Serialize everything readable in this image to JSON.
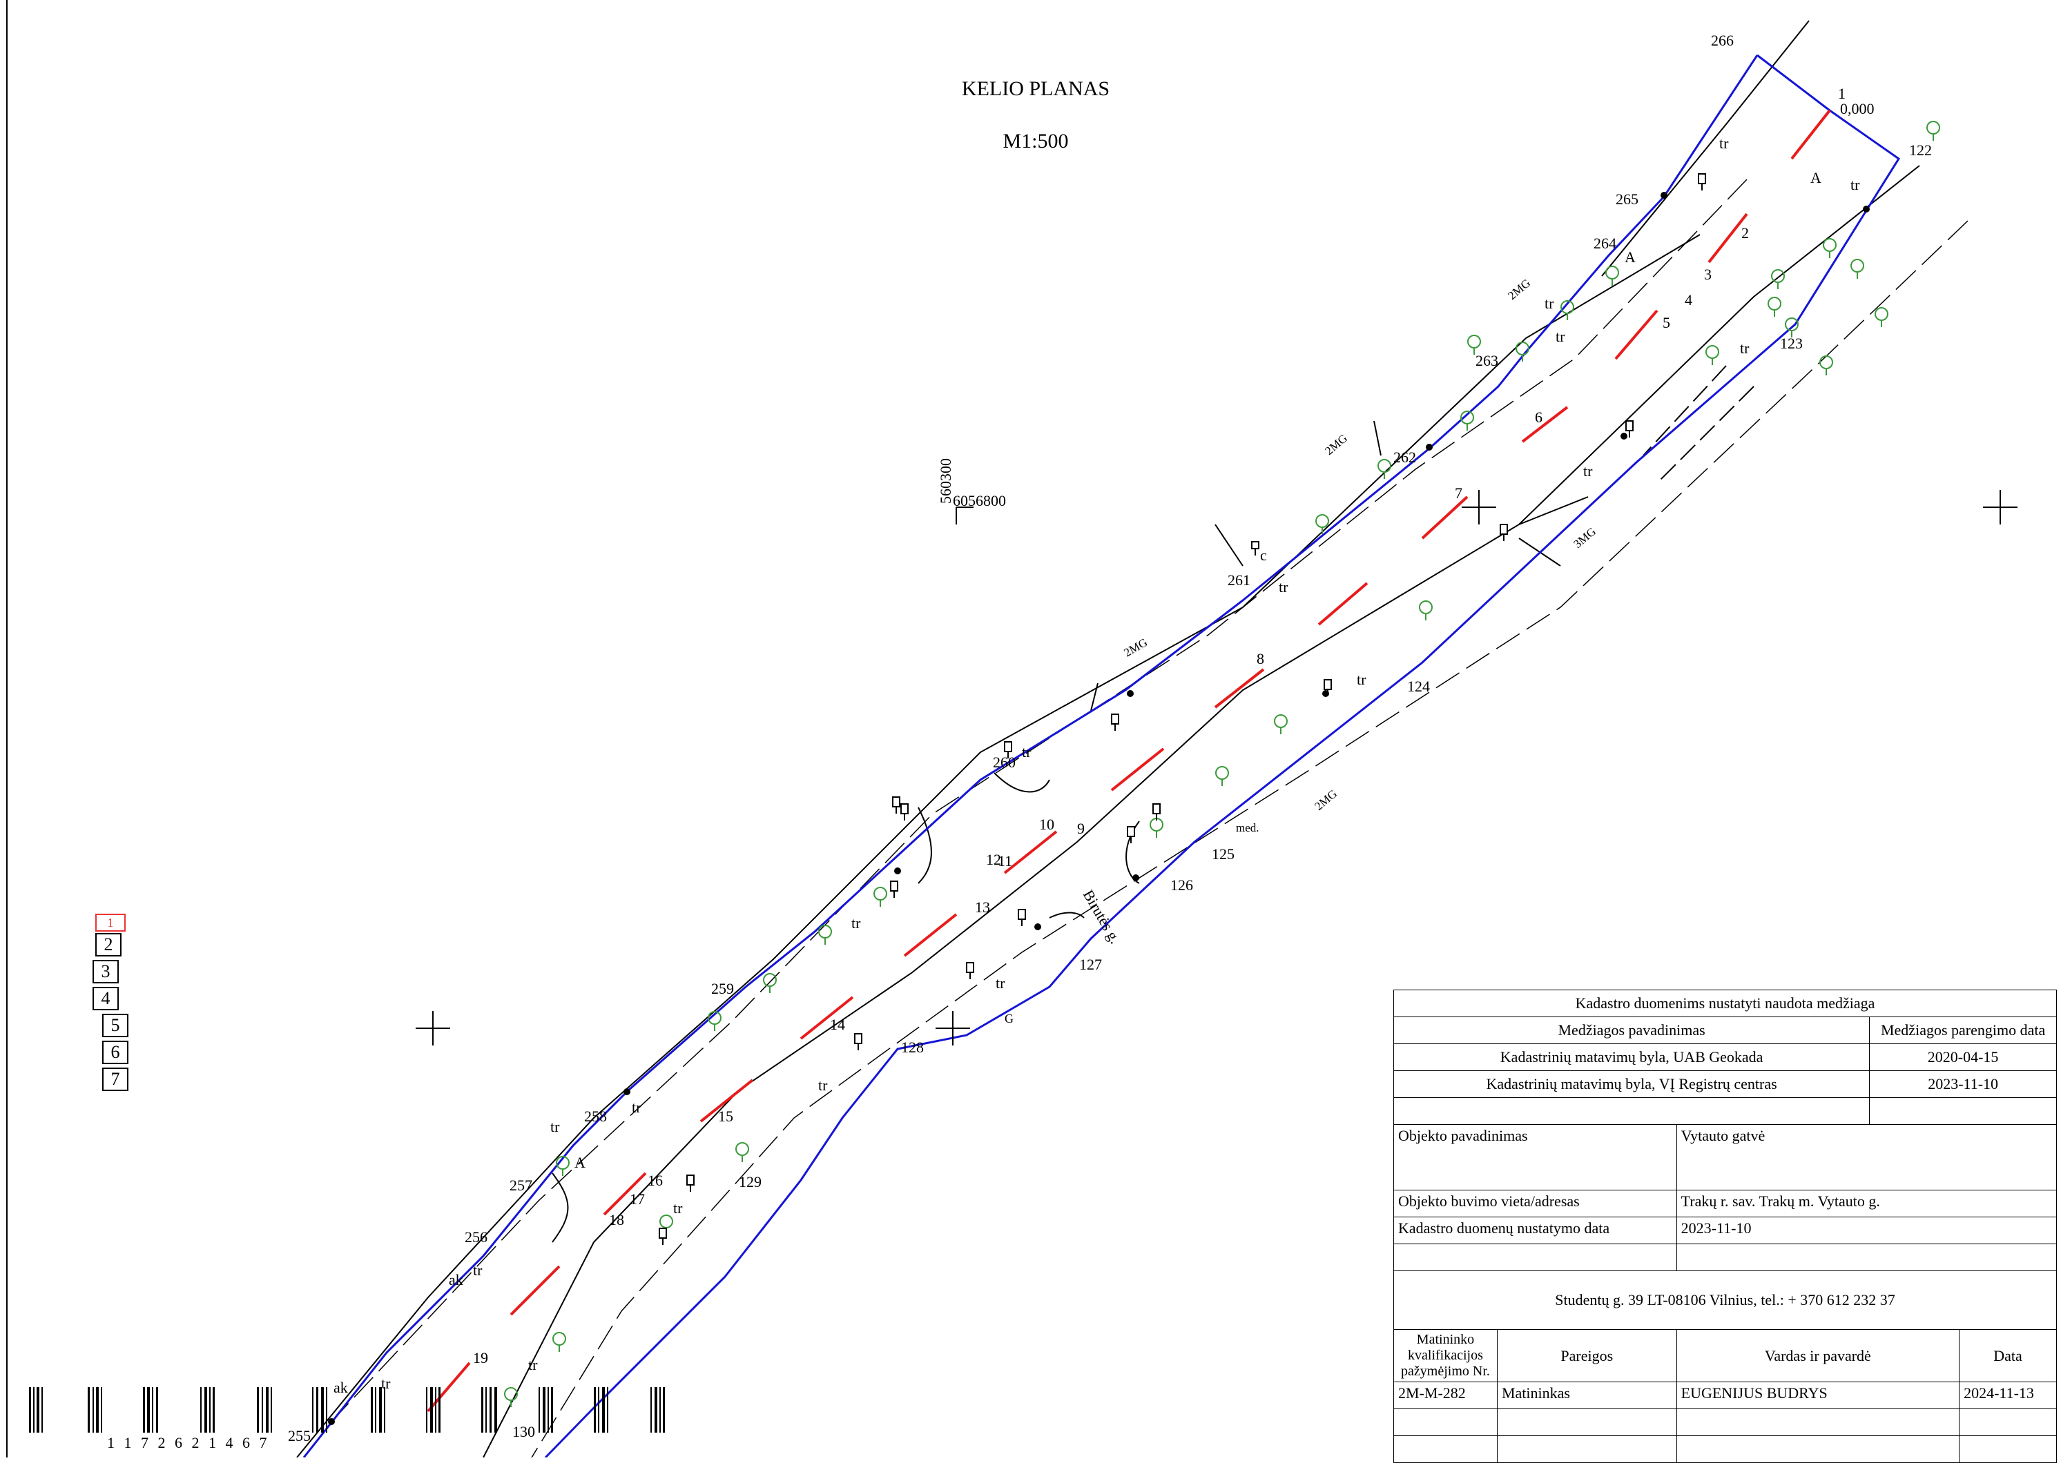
{
  "header": {
    "title": "KELIO PLANAS",
    "scale": "M1:500"
  },
  "coord_label": {
    "x": "560300",
    "y": "6056800"
  },
  "street_name": "Birutės g.",
  "chainage": {
    "point": "1",
    "value": "0,000"
  },
  "boundary_points": [
    "266",
    "265",
    "264",
    "263",
    "262",
    "261",
    "260",
    "259",
    "258",
    "257",
    "256",
    "255",
    "122",
    "123",
    "124",
    "125",
    "126",
    "127",
    "128",
    "129",
    "130"
  ],
  "axis_points": [
    "1",
    "2",
    "3",
    "4",
    "5",
    "6",
    "7",
    "8",
    "9",
    "10",
    "11",
    "12",
    "13",
    "14",
    "15",
    "16",
    "17",
    "18",
    "19"
  ],
  "labels": {
    "tr": "tr",
    "A": "A",
    "c": "c",
    "G": "G",
    "2MG": "2MG",
    "3MG": "3MG",
    "med": "med.",
    "ak": "ak",
    "five": "5",
    "six": "6"
  },
  "sheets": [
    "1",
    "2",
    "3",
    "4",
    "5",
    "6",
    "7"
  ],
  "barcode_text": "1 1 7 2 6 2 1 4 6 7",
  "stamp": {
    "heading": "Kadastro duomenims nustatyti naudota medžiaga",
    "col_name": "Medžiagos pavadinimas",
    "col_date": "Medžiagos parengimo data",
    "materials": [
      {
        "name": "Kadastrinių matavimų byla, UAB Geokada",
        "date": "2020-04-15"
      },
      {
        "name": "Kadastrinių matavimų byla, VĮ Registrų centras",
        "date": "2023-11-10"
      }
    ],
    "object_name_label": "Objekto pavadinimas",
    "object_name": "Vytauto gatvė",
    "location_label": "Objekto buvimo vieta/adresas",
    "location": "Trakų r. sav. Trakų m. Vytauto g.",
    "date_label": "Kadastro duomenų nustatymo data",
    "date": "2023-11-10",
    "address": "Studentų g. 39 LT-08106 Vilnius, tel.: + 370 612 232 37",
    "sig_col1": "Matininko kvalifikacijos pažymėjimo Nr.",
    "sig_col2": "Pareigos",
    "sig_col3": "Vardas ir pavardė",
    "sig_col4": "Data",
    "surveyor": {
      "license": "2M-M-282",
      "role": "Matininkas",
      "name": "EUGENIJUS BUDRYS",
      "date": "2024-11-13"
    }
  },
  "colors": {
    "boundary": "#1515d6",
    "axis": "#e81c1c",
    "tree": "#3a9a3a",
    "ink": "#000000"
  }
}
